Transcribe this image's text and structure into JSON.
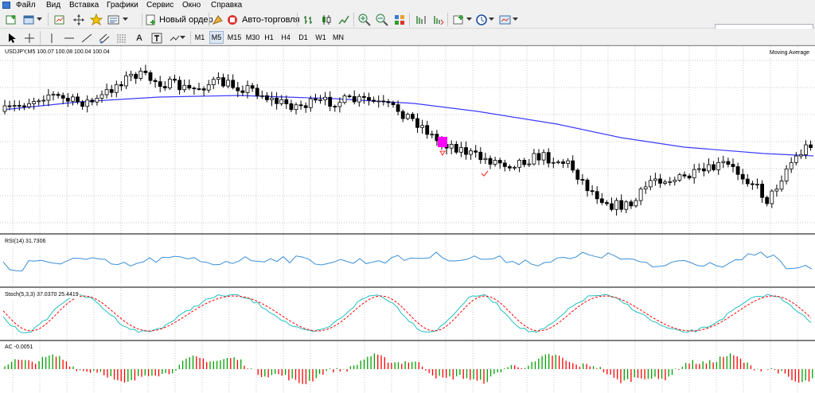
{
  "menu": {
    "items": [
      "Файл",
      "Вид",
      "Вставка",
      "Графики",
      "Сервис",
      "Окно",
      "Справка"
    ]
  },
  "toolbar": {
    "new_order_label": "Новый ордер",
    "autotrading_label": "Авто-торговля",
    "timeframes": [
      "M1",
      "M5",
      "M15",
      "M30",
      "H1",
      "H4",
      "D1",
      "W1",
      "MN"
    ],
    "active_timeframe": "M5",
    "icons": [
      "new-chart-icon",
      "profiles-icon",
      "market-watch-icon",
      "navigator-icon",
      "favorites-icon",
      "terminal-icon",
      "new-order-icon",
      "autotrading-icon",
      "bar-chart-icon",
      "candle-chart-icon",
      "line-chart-icon",
      "zoom-in-icon",
      "zoom-out-icon",
      "tile-windows-icon",
      "chart-shift-icon",
      "autoscroll-icon",
      "indicators-icon",
      "periods-icon",
      "templates-icon",
      "cursor-icon",
      "crosshair-icon",
      "vertical-line-icon",
      "horizontal-line-icon",
      "trendline-icon",
      "channel-icon",
      "fibonacci-icon",
      "text-icon",
      "text-label-icon",
      "arrows-icon"
    ]
  },
  "chart": {
    "header": "USDJPY,M5  100.07 100.08 100.04 100.04",
    "indicator_label": "Moving Average",
    "colors": {
      "up_candle": "#ffffff",
      "down_candle": "#000000",
      "moving_average": "#3b3bff",
      "rsi": "#3a8fd8",
      "stoch_main": "#20c0c0",
      "stoch_signal": "#ff0000",
      "ac_up": "#00a000",
      "ac_down": "#ff0000",
      "marker": "#ff00ff"
    }
  },
  "rsi": {
    "label": "RSI(14) 31.7306"
  },
  "stoch": {
    "label": "Stoch(5,3,3) 37.0370 25.4419"
  },
  "ac": {
    "label": "AC -0.0051"
  },
  "chart_data": {
    "type": "candlestick",
    "symbol": "USDJPY",
    "timeframe": "M5",
    "ohlc_header": [
      100.07,
      100.08,
      100.04,
      100.04
    ],
    "rsi_value": 31.7306,
    "stoch_main": 37.037,
    "stoch_signal": 25.4419,
    "ac_value": -0.0051
  }
}
